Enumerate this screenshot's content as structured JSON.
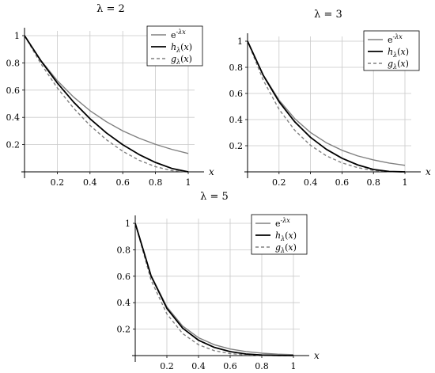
{
  "chart_data": [
    {
      "type": "line",
      "title": "λ = 2",
      "xlabel": "x",
      "ylabel": "",
      "xlim": [
        0,
        1
      ],
      "ylim": [
        0,
        1
      ],
      "xticks": [
        "0.2",
        "0.4",
        "0.6",
        "0.8",
        "1"
      ],
      "yticks": [
        "0.2",
        "0.4",
        "0.6",
        "0.8",
        "1"
      ],
      "grid": true,
      "legend_position": "top-right",
      "x": [
        0,
        0.1,
        0.2,
        0.3,
        0.4,
        0.5,
        0.6,
        0.7,
        0.8,
        0.9,
        1.0
      ],
      "series": [
        {
          "name": "e^{-λx}",
          "color": "#808080",
          "style": "solid",
          "values": [
            1.0,
            0.819,
            0.67,
            0.549,
            0.449,
            0.368,
            0.301,
            0.247,
            0.202,
            0.165,
            0.135
          ]
        },
        {
          "name": "h_λ(x)",
          "color": "#000000",
          "style": "solid",
          "values": [
            1.0,
            0.815,
            0.653,
            0.512,
            0.39,
            0.286,
            0.199,
            0.127,
            0.069,
            0.025,
            0.0
          ]
        },
        {
          "name": "g_λ(x)",
          "color": "#808080",
          "style": "dashed",
          "values": [
            1.0,
            0.794,
            0.617,
            0.467,
            0.341,
            0.236,
            0.151,
            0.085,
            0.038,
            0.009,
            0.0
          ]
        }
      ]
    },
    {
      "type": "line",
      "title": "λ = 3",
      "xlabel": "x",
      "ylabel": "",
      "xlim": [
        0,
        1
      ],
      "ylim": [
        0,
        1
      ],
      "xticks": [
        "0.2",
        "0.4",
        "0.6",
        "0.8",
        "1"
      ],
      "yticks": [
        "0.2",
        "0.4",
        "0.6",
        "0.8",
        "1"
      ],
      "grid": true,
      "legend_position": "top-right",
      "x": [
        0,
        0.1,
        0.2,
        0.3,
        0.4,
        0.5,
        0.6,
        0.7,
        0.8,
        0.9,
        1.0
      ],
      "series": [
        {
          "name": "e^{-λx}",
          "color": "#808080",
          "style": "solid",
          "values": [
            1.0,
            0.741,
            0.549,
            0.407,
            0.301,
            0.223,
            0.165,
            0.122,
            0.091,
            0.067,
            0.05
          ]
        },
        {
          "name": "h_λ(x)",
          "color": "#000000",
          "style": "solid",
          "values": [
            1.0,
            0.738,
            0.537,
            0.383,
            0.264,
            0.173,
            0.104,
            0.053,
            0.018,
            0.003,
            0.0
          ]
        },
        {
          "name": "g_λ(x)",
          "color": "#808080",
          "style": "dashed",
          "values": [
            1.0,
            0.701,
            0.479,
            0.318,
            0.203,
            0.123,
            0.069,
            0.032,
            0.011,
            0.002,
            0.0
          ]
        }
      ]
    },
    {
      "type": "line",
      "title": "λ = 5",
      "xlabel": "x",
      "ylabel": "",
      "xlim": [
        0,
        1
      ],
      "ylim": [
        0,
        1
      ],
      "xticks": [
        "0.2",
        "0.4",
        "0.6",
        "0.8",
        "1"
      ],
      "yticks": [
        "0.2",
        "0.4",
        "0.6",
        "0.8",
        "1"
      ],
      "grid": true,
      "legend_position": "top-right",
      "x": [
        0,
        0.1,
        0.2,
        0.3,
        0.4,
        0.5,
        0.6,
        0.7,
        0.8,
        0.9,
        1.0
      ],
      "series": [
        {
          "name": "e^{-λx}",
          "color": "#808080",
          "style": "solid",
          "values": [
            1.0,
            0.607,
            0.368,
            0.223,
            0.135,
            0.082,
            0.05,
            0.03,
            0.018,
            0.011,
            0.007
          ]
        },
        {
          "name": "h_λ(x)",
          "color": "#000000",
          "style": "solid",
          "values": [
            1.0,
            0.602,
            0.357,
            0.207,
            0.116,
            0.062,
            0.03,
            0.012,
            0.004,
            0.001,
            0.0
          ]
        },
        {
          "name": "g_λ(x)",
          "color": "#808080",
          "style": "dashed",
          "values": [
            1.0,
            0.57,
            0.315,
            0.166,
            0.082,
            0.037,
            0.015,
            0.005,
            0.001,
            0.0,
            0.0
          ]
        }
      ]
    }
  ]
}
